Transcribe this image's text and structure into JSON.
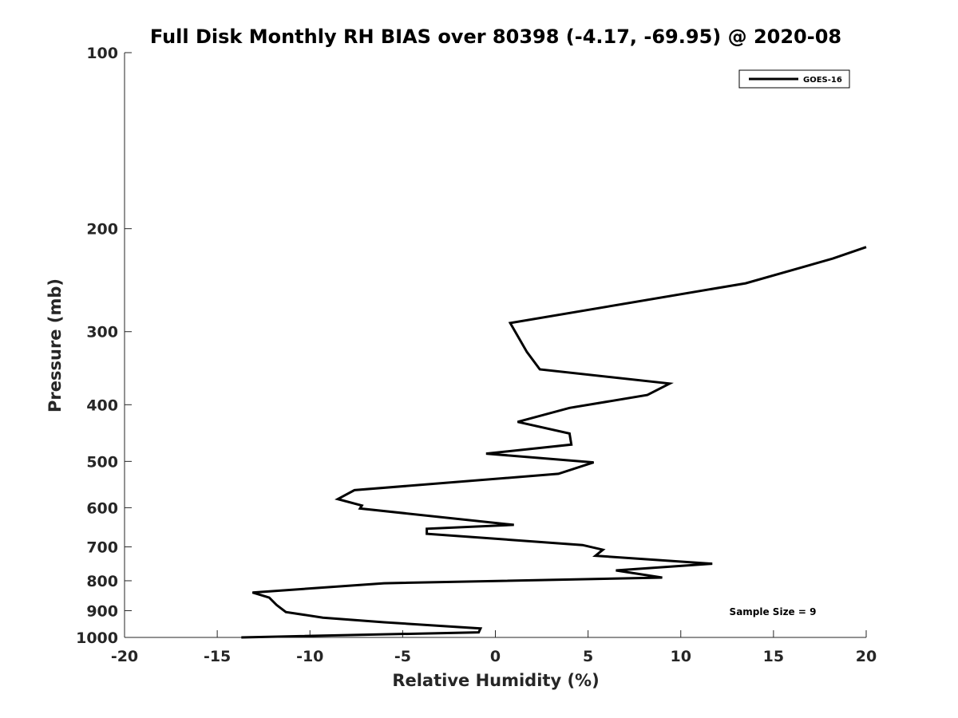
{
  "chart_data": {
    "type": "line",
    "title": "Full Disk Monthly RH BIAS over 80398 (-4.17, -69.95) @ 2020-08",
    "xlabel": "Relative Humidity (%)",
    "ylabel": "Pressure (mb)",
    "xlim": [
      -20,
      20
    ],
    "ylim": [
      100,
      1000
    ],
    "y_scale": "log",
    "y_reversed": true,
    "grid": false,
    "legend_position": "top-right",
    "x_ticks": [
      -20,
      -15,
      -10,
      -5,
      0,
      5,
      10,
      15,
      20
    ],
    "x_tick_labels": [
      "-20",
      "-15",
      "-10",
      "-5",
      "0",
      "5",
      "10",
      "15",
      "20"
    ],
    "y_ticks": [
      100,
      200,
      300,
      400,
      500,
      600,
      700,
      800,
      900,
      1000
    ],
    "y_tick_labels": [
      "100",
      "200",
      "300",
      "400",
      "500",
      "600",
      "700",
      "800",
      "900",
      "1000"
    ],
    "annotation": "Sample Size = 9",
    "series": [
      {
        "name": "GOES-16",
        "color": "#000000",
        "x": [
          20.0,
          18.2,
          13.5,
          0.8,
          1.7,
          2.4,
          9.4,
          8.2,
          4.0,
          1.2,
          4.0,
          4.1,
          -0.5,
          5.3,
          3.4,
          -7.6,
          -8.5,
          -7.2,
          -7.3,
          1.0,
          -3.7,
          -3.7,
          4.7,
          5.8,
          5.4,
          11.7,
          6.5,
          9.0,
          -6.0,
          -13.1,
          -12.2,
          -11.8,
          -11.3,
          -9.3,
          -6.0,
          -0.8,
          -0.9,
          -13.7
        ],
        "y": [
          215,
          225,
          248,
          290,
          325,
          348,
          368,
          385,
          405,
          428,
          448,
          468,
          485,
          502,
          525,
          560,
          580,
          595,
          602,
          642,
          652,
          665,
          695,
          708,
          725,
          748,
          768,
          790,
          808,
          838,
          855,
          880,
          905,
          925,
          942,
          965,
          980,
          1000
        ]
      }
    ]
  }
}
